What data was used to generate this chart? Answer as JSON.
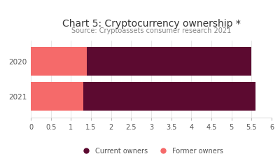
{
  "title": "Chart 5: Cryptocurrency ownership *",
  "subtitle": "Source: Cryptoassets consumer research 2021",
  "years": [
    "2020",
    "2021"
  ],
  "former_owners": [
    1.4,
    1.3
  ],
  "current_owners": [
    4.1,
    4.3
  ],
  "former_color": "#F56A6A",
  "current_color": "#5C0A30",
  "xlim": [
    0,
    6
  ],
  "xticks": [
    0,
    0.5,
    1,
    1.5,
    2,
    2.5,
    3,
    3.5,
    4,
    4.5,
    5,
    5.5,
    6
  ],
  "xtick_labels": [
    "0",
    "0.5",
    "1",
    "1.5",
    "2",
    "2.5",
    "3",
    "3.5",
    "4",
    "4.5",
    "5",
    "5.5",
    "6"
  ],
  "legend_current": "Current owners",
  "legend_former": "Former owners",
  "title_fontsize": 10,
  "subtitle_fontsize": 7,
  "tick_fontsize": 7,
  "ytick_fontsize": 7.5,
  "background_color": "#ffffff",
  "bar_height": 0.82
}
